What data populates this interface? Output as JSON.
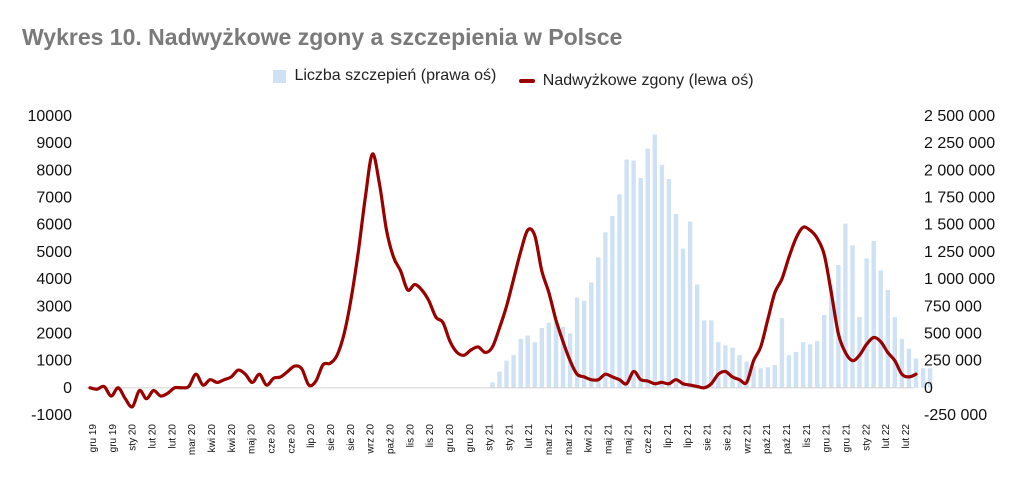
{
  "chart_data": {
    "type": "bar+line",
    "title": "Wykres 10. Nadwyżkowe zgony a szczepienia w Polsce",
    "legend": {
      "placement": "top-center",
      "items": [
        "Liczba szczepień (prawa oś)",
        "Nadwyżkowe zgony (lewa oś)"
      ]
    },
    "colors": {
      "bars": "#cfe2f3",
      "line": "#990000",
      "title": "#7a7a7a"
    },
    "grid": false,
    "y_left": {
      "range": [
        -1000,
        10000
      ],
      "ticks": [
        -1000,
        0,
        1000,
        2000,
        3000,
        4000,
        5000,
        6000,
        7000,
        8000,
        9000,
        10000
      ],
      "tick_labels": [
        "-1000",
        "0",
        "1000",
        "2000",
        "3000",
        "4000",
        "5000",
        "6000",
        "7000",
        "8000",
        "9000",
        "10000"
      ]
    },
    "y_right": {
      "range": [
        -250000,
        2500000
      ],
      "ticks": [
        -250000,
        0,
        250000,
        500000,
        750000,
        1000000,
        1250000,
        1500000,
        1750000,
        2000000,
        2250000,
        2500000
      ],
      "tick_labels": [
        "-250 000",
        "0",
        "250 000",
        "500 000",
        "750 000",
        "1 000 000",
        "1 250 000",
        "1 500 000",
        "1 750 000",
        "2 000 000",
        "2 250 000",
        "2 500 000"
      ]
    },
    "x_tick_labels": [
      "gru 19",
      "gru 19",
      "sty 20",
      "lut 20",
      "lut 20",
      "mar 20",
      "kwi 20",
      "kwi 20",
      "maj 20",
      "cze 20",
      "cze 20",
      "lip 20",
      "sie 20",
      "sie 20",
      "wrz 20",
      "paź 20",
      "lis 20",
      "lis 20",
      "gru 20",
      "gru 20",
      "sty 21",
      "sty 21",
      "lut 21",
      "mar 21",
      "mar 21",
      "kwi 21",
      "maj 21",
      "maj 21",
      "cze 21",
      "lip 21",
      "lip 21",
      "sie 21",
      "sie 21",
      "wrz 21",
      "paź 21",
      "paź 21",
      "lis 21",
      "gru 21",
      "gru 21",
      "sty 22",
      "lut 22",
      "lut 22"
    ],
    "series": [
      {
        "name": "Liczba szczepień (prawa oś)",
        "type": "bar",
        "axis": "right",
        "week_index": [
          57,
          58,
          59,
          60,
          61,
          62,
          63,
          64,
          65,
          66,
          67,
          68,
          69,
          70,
          71,
          72,
          73,
          74,
          75,
          76,
          77,
          78,
          79,
          80,
          81,
          82,
          83,
          84,
          85,
          86,
          87,
          88,
          89,
          90,
          91,
          92,
          93,
          94,
          95,
          96,
          97,
          98,
          99,
          100,
          101,
          102,
          103,
          104,
          105,
          106,
          107,
          108,
          109,
          110,
          111,
          112,
          113,
          114,
          115,
          116,
          117,
          118,
          119
        ],
        "values": [
          50000,
          150000,
          250000,
          300000,
          450000,
          480000,
          420000,
          550000,
          600000,
          620000,
          560000,
          500000,
          830000,
          800000,
          970000,
          1200000,
          1430000,
          1580000,
          1780000,
          2100000,
          2090000,
          1930000,
          2200000,
          2330000,
          2050000,
          1920000,
          1600000,
          1280000,
          1530000,
          950000,
          620000,
          620000,
          420000,
          390000,
          370000,
          300000,
          240000,
          200000,
          180000,
          190000,
          210000,
          640000,
          300000,
          330000,
          420000,
          400000,
          430000,
          670000,
          950000,
          1130000,
          1510000,
          1310000,
          650000,
          1190000,
          1350000,
          1080000,
          900000,
          650000,
          450000,
          360000,
          270000,
          180000,
          180000
        ]
      },
      {
        "name": "Nadwyżkowe zgony (lewa oś)",
        "type": "line",
        "axis": "left",
        "values": [
          0,
          -50,
          50,
          -300,
          0,
          -400,
          -700,
          -100,
          -400,
          -100,
          -300,
          -200,
          0,
          0,
          50,
          500,
          100,
          300,
          200,
          300,
          400,
          650,
          500,
          200,
          500,
          100,
          350,
          400,
          600,
          800,
          700,
          100,
          250,
          850,
          900,
          1200,
          2000,
          3300,
          5000,
          7000,
          8600,
          7500,
          5800,
          4800,
          4300,
          3600,
          3800,
          3600,
          3200,
          2600,
          2400,
          1700,
          1300,
          1200,
          1400,
          1500,
          1300,
          1500,
          2200,
          3000,
          4000,
          5000,
          5800,
          5600,
          4300,
          3500,
          2500,
          1700,
          1000,
          500,
          400,
          300,
          300,
          500,
          400,
          300,
          150,
          600,
          300,
          250,
          150,
          200,
          150,
          300,
          150,
          100,
          50,
          0,
          150,
          500,
          600,
          400,
          300,
          200,
          1000,
          1500,
          2500,
          3500,
          4000,
          4800,
          5500,
          5900,
          5800,
          5500,
          4900,
          3500,
          2000,
          1300,
          1000,
          1200,
          1600,
          1850,
          1700,
          1300,
          1000,
          500,
          400,
          500
        ]
      }
    ]
  }
}
